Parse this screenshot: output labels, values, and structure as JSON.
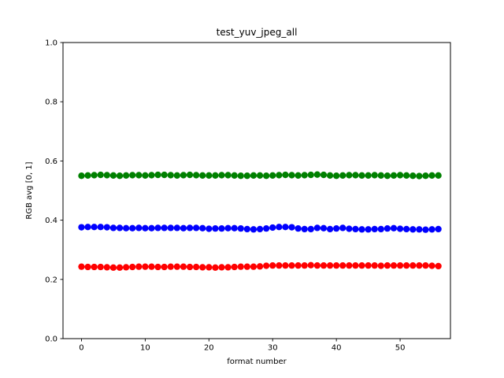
{
  "figure": {
    "background": "#ffffff",
    "axes_edge_color": "#000000"
  },
  "chart_data": {
    "type": "scatter",
    "title": "test_yuv_jpeg_all",
    "xlabel": "format number",
    "ylabel": "RGB avg [0, 1]",
    "xlim": [
      -2.9,
      57.9
    ],
    "ylim": [
      0.0,
      1.0
    ],
    "grid": false,
    "legend": "none",
    "x_ticks": [
      0,
      10,
      20,
      30,
      40,
      50
    ],
    "y_ticks": [
      0.0,
      0.2,
      0.4,
      0.6,
      0.8,
      1.0
    ],
    "y_tick_labels": [
      "0.0",
      "0.2",
      "0.4",
      "0.6",
      "0.8",
      "1.0"
    ],
    "marker": "o",
    "x": [
      0,
      1,
      2,
      3,
      4,
      5,
      6,
      7,
      8,
      9,
      10,
      11,
      12,
      13,
      14,
      15,
      16,
      17,
      18,
      19,
      20,
      21,
      22,
      23,
      24,
      25,
      26,
      27,
      28,
      29,
      30,
      31,
      32,
      33,
      34,
      35,
      36,
      37,
      38,
      39,
      40,
      41,
      42,
      43,
      44,
      45,
      46,
      47,
      48,
      49,
      50,
      51,
      52,
      53,
      54,
      55,
      56
    ],
    "series": [
      {
        "name": "green",
        "color": "#008000",
        "values": [
          0.55,
          0.551,
          0.552,
          0.553,
          0.552,
          0.551,
          0.55,
          0.551,
          0.552,
          0.552,
          0.551,
          0.552,
          0.553,
          0.553,
          0.552,
          0.551,
          0.552,
          0.553,
          0.552,
          0.551,
          0.551,
          0.551,
          0.552,
          0.552,
          0.551,
          0.55,
          0.55,
          0.551,
          0.551,
          0.55,
          0.551,
          0.552,
          0.553,
          0.552,
          0.551,
          0.552,
          0.553,
          0.554,
          0.553,
          0.551,
          0.55,
          0.551,
          0.552,
          0.552,
          0.551,
          0.551,
          0.552,
          0.551,
          0.55,
          0.551,
          0.552,
          0.551,
          0.55,
          0.549,
          0.55,
          0.551,
          0.551
        ]
      },
      {
        "name": "blue",
        "color": "#0000ff",
        "values": [
          0.376,
          0.377,
          0.377,
          0.377,
          0.376,
          0.374,
          0.374,
          0.373,
          0.373,
          0.374,
          0.373,
          0.373,
          0.374,
          0.374,
          0.374,
          0.374,
          0.373,
          0.374,
          0.374,
          0.373,
          0.371,
          0.372,
          0.372,
          0.373,
          0.373,
          0.372,
          0.37,
          0.369,
          0.37,
          0.372,
          0.375,
          0.377,
          0.377,
          0.376,
          0.372,
          0.37,
          0.37,
          0.374,
          0.373,
          0.37,
          0.372,
          0.374,
          0.371,
          0.37,
          0.369,
          0.369,
          0.37,
          0.37,
          0.372,
          0.373,
          0.371,
          0.37,
          0.369,
          0.369,
          0.368,
          0.369,
          0.37
        ]
      },
      {
        "name": "red",
        "color": "#ff0000",
        "values": [
          0.243,
          0.242,
          0.242,
          0.242,
          0.241,
          0.24,
          0.24,
          0.241,
          0.242,
          0.243,
          0.243,
          0.243,
          0.242,
          0.242,
          0.243,
          0.243,
          0.243,
          0.242,
          0.242,
          0.241,
          0.241,
          0.24,
          0.241,
          0.241,
          0.242,
          0.243,
          0.243,
          0.243,
          0.244,
          0.246,
          0.247,
          0.247,
          0.247,
          0.247,
          0.247,
          0.247,
          0.248,
          0.247,
          0.247,
          0.247,
          0.247,
          0.247,
          0.247,
          0.247,
          0.247,
          0.247,
          0.247,
          0.246,
          0.247,
          0.247,
          0.247,
          0.247,
          0.247,
          0.247,
          0.247,
          0.246,
          0.245
        ]
      }
    ]
  }
}
